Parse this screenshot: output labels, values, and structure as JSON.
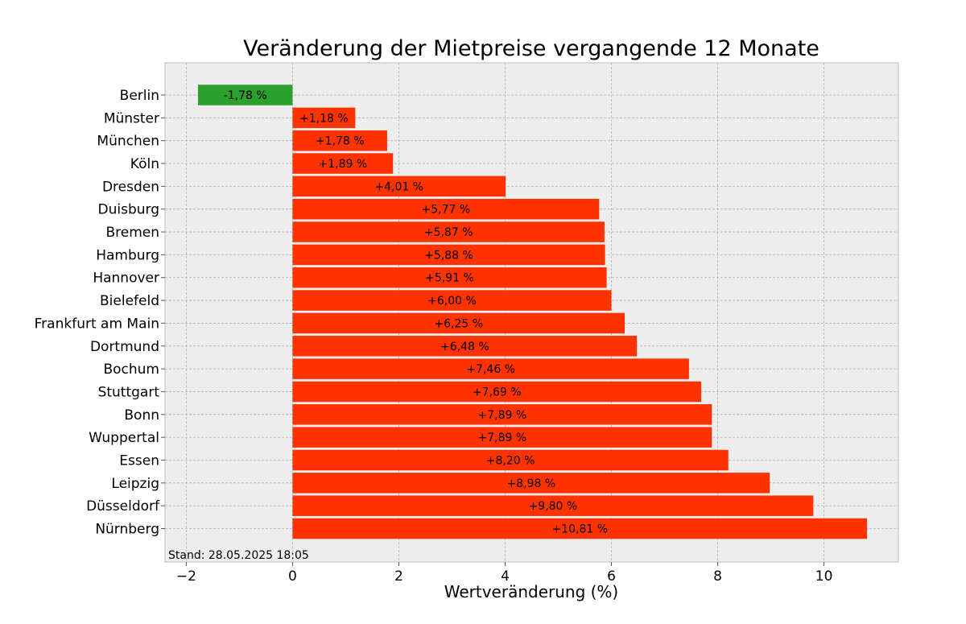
{
  "chart_data": {
    "type": "bar",
    "orientation": "horizontal",
    "title": "Veränderung der Mietpreise vergangende 12 Monate",
    "xlabel": "Wertveränderung (%)",
    "ylabel": "",
    "xlim": [
      -2.4,
      11.4
    ],
    "xticks": [
      -2,
      0,
      2,
      4,
      6,
      8,
      10
    ],
    "xtick_labels": [
      "−2",
      "0",
      "2",
      "4",
      "6",
      "8",
      "10"
    ],
    "grid": true,
    "categories": [
      "Berlin",
      "Münster",
      "München",
      "Köln",
      "Dresden",
      "Duisburg",
      "Bremen",
      "Hamburg",
      "Hannover",
      "Bielefeld",
      "Frankfurt am Main",
      "Dortmund",
      "Bochum",
      "Stuttgart",
      "Bonn",
      "Wuppertal",
      "Essen",
      "Leipzig",
      "Düsseldorf",
      "Nürnberg"
    ],
    "values": [
      -1.78,
      1.18,
      1.78,
      1.89,
      4.01,
      5.77,
      5.87,
      5.88,
      5.91,
      6.0,
      6.25,
      6.48,
      7.46,
      7.69,
      7.89,
      7.89,
      8.2,
      8.98,
      9.8,
      10.81
    ],
    "value_labels": [
      "-1,78 %",
      "+1,18 %",
      "+1,78 %",
      "+1,89 %",
      "+4,01 %",
      "+5,77 %",
      "+5,87 %",
      "+5,88 %",
      "+5,91 %",
      "+6,00 %",
      "+6,25 %",
      "+6,48 %",
      "+7,46 %",
      "+7,69 %",
      "+7,89 %",
      "+7,89 %",
      "+8,20 %",
      "+8,98 %",
      "+9,80 %",
      "+10,81 %"
    ],
    "colors": {
      "negative": "#2ca02c",
      "positive": "#ff3300",
      "plot_background": "#ededed",
      "grid": "#b0b0b0",
      "spine": "#bcbcbc"
    },
    "footnote": "Stand: 28.05.2025 18:05"
  }
}
